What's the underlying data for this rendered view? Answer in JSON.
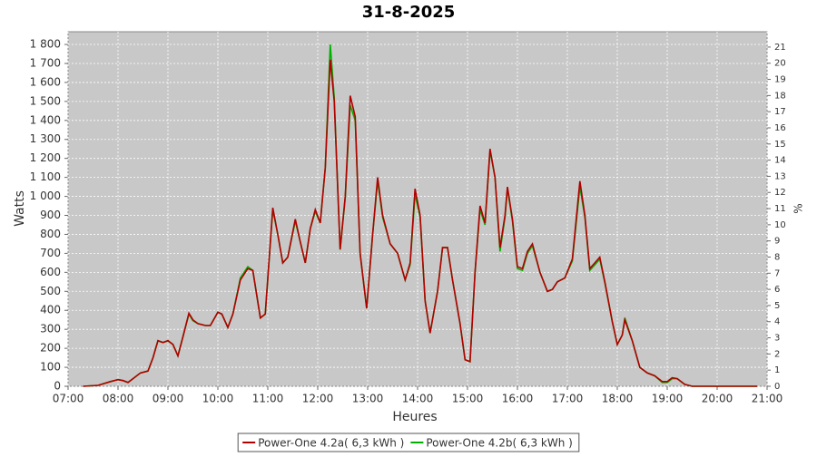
{
  "chart_data": {
    "type": "line",
    "title": "31-8-2025",
    "x_label": "Heures",
    "y_label": "Watts",
    "y2_label": "%",
    "x": [
      7.3,
      7.6,
      7.85,
      8.0,
      8.1,
      8.2,
      8.3,
      8.45,
      8.6,
      8.7,
      8.8,
      8.9,
      9.0,
      9.1,
      9.2,
      9.3,
      9.42,
      9.5,
      9.6,
      9.75,
      9.85,
      10.0,
      10.08,
      10.2,
      10.3,
      10.45,
      10.6,
      10.7,
      10.85,
      10.95,
      11.1,
      11.2,
      11.3,
      11.4,
      11.55,
      11.65,
      11.75,
      11.85,
      11.95,
      12.05,
      12.15,
      12.25,
      12.33,
      12.45,
      12.55,
      12.65,
      12.75,
      12.85,
      12.98,
      13.1,
      13.2,
      13.3,
      13.45,
      13.6,
      13.75,
      13.85,
      13.95,
      14.05,
      14.15,
      14.25,
      14.4,
      14.5,
      14.6,
      14.7,
      14.85,
      14.95,
      15.05,
      15.15,
      15.25,
      15.35,
      15.45,
      15.55,
      15.65,
      15.75,
      15.8,
      15.9,
      16.0,
      16.1,
      16.2,
      16.3,
      16.45,
      16.6,
      16.7,
      16.8,
      16.95,
      17.1,
      17.25,
      17.35,
      17.45,
      17.55,
      17.65,
      17.75,
      17.9,
      18.0,
      18.1,
      18.15,
      18.3,
      18.45,
      18.6,
      18.75,
      18.9,
      19.0,
      19.1,
      19.2,
      19.35,
      19.5,
      20.8
    ],
    "series": [
      {
        "name": "Power-One 4.2a( 6,3 kWh )",
        "color": "#b00000",
        "values": [
          0,
          5,
          25,
          35,
          30,
          20,
          40,
          70,
          80,
          150,
          240,
          230,
          240,
          220,
          160,
          260,
          385,
          350,
          330,
          320,
          320,
          390,
          380,
          310,
          380,
          560,
          620,
          610,
          360,
          380,
          940,
          800,
          650,
          680,
          880,
          760,
          650,
          830,
          930,
          860,
          1150,
          1720,
          1500,
          720,
          1000,
          1530,
          1420,
          700,
          410,
          800,
          1100,
          900,
          750,
          700,
          560,
          650,
          1040,
          900,
          450,
          280,
          500,
          730,
          730,
          560,
          330,
          140,
          130,
          600,
          950,
          860,
          1250,
          1100,
          730,
          900,
          1050,
          880,
          630,
          620,
          710,
          750,
          600,
          500,
          510,
          550,
          570,
          670,
          1080,
          900,
          620,
          650,
          680,
          550,
          340,
          220,
          270,
          350,
          240,
          100,
          70,
          55,
          25,
          25,
          45,
          40,
          10,
          0,
          0
        ]
      },
      {
        "name": "Power-One 4.2b( 6,3 kWh )",
        "color": "#00b000",
        "values": [
          0,
          5,
          25,
          35,
          30,
          20,
          40,
          70,
          80,
          150,
          240,
          230,
          240,
          220,
          160,
          260,
          380,
          345,
          330,
          320,
          320,
          390,
          380,
          310,
          380,
          570,
          630,
          610,
          360,
          380,
          930,
          800,
          650,
          680,
          870,
          760,
          650,
          830,
          920,
          860,
          1150,
          1800,
          1520,
          720,
          990,
          1480,
          1400,
          700,
          410,
          800,
          1080,
          890,
          750,
          700,
          560,
          640,
          1010,
          890,
          450,
          280,
          500,
          730,
          730,
          560,
          330,
          140,
          130,
          600,
          930,
          850,
          1240,
          1100,
          710,
          890,
          1040,
          870,
          620,
          610,
          700,
          740,
          600,
          500,
          510,
          550,
          570,
          660,
          1050,
          890,
          610,
          640,
          670,
          545,
          340,
          220,
          270,
          360,
          240,
          100,
          70,
          55,
          20,
          20,
          40,
          40,
          10,
          0,
          0
        ]
      }
    ],
    "xlim": [
      7,
      21
    ],
    "xticks": [
      {
        "value": 7,
        "label": "07:00"
      },
      {
        "value": 8,
        "label": "08:00"
      },
      {
        "value": 9,
        "label": "09:00"
      },
      {
        "value": 10,
        "label": "10:00"
      },
      {
        "value": 11,
        "label": "11:00"
      },
      {
        "value": 12,
        "label": "12:00"
      },
      {
        "value": 13,
        "label": "13:00"
      },
      {
        "value": 14,
        "label": "14:00"
      },
      {
        "value": 15,
        "label": "15:00"
      },
      {
        "value": 16,
        "label": "16:00"
      },
      {
        "value": 17,
        "label": "17:00"
      },
      {
        "value": 18,
        "label": "18:00"
      },
      {
        "value": 19,
        "label": "19:00"
      },
      {
        "value": 20,
        "label": "20:00"
      },
      {
        "value": 21,
        "label": "21:00"
      }
    ],
    "ylim": [
      0,
      1867
    ],
    "yticks": [
      0,
      100,
      200,
      300,
      400,
      500,
      600,
      700,
      800,
      900,
      {
        "value": 1000,
        "label": "1 000"
      },
      {
        "value": 1100,
        "label": "1 100"
      },
      {
        "value": 1200,
        "label": "1 200"
      },
      {
        "value": 1300,
        "label": "1 300"
      },
      {
        "value": 1400,
        "label": "1 400"
      },
      {
        "value": 1500,
        "label": "1 500"
      },
      {
        "value": 1600,
        "label": "1 600"
      },
      {
        "value": 1700,
        "label": "1 700"
      },
      {
        "value": 1800,
        "label": "1 800"
      }
    ],
    "y2lim": [
      0,
      21.95
    ],
    "y2ticks": [
      0,
      1,
      2,
      3,
      4,
      5,
      6,
      7,
      8,
      9,
      10,
      11,
      12,
      13,
      14,
      15,
      16,
      17,
      18,
      19,
      20,
      21
    ],
    "grid": true,
    "legend": "bottom"
  }
}
